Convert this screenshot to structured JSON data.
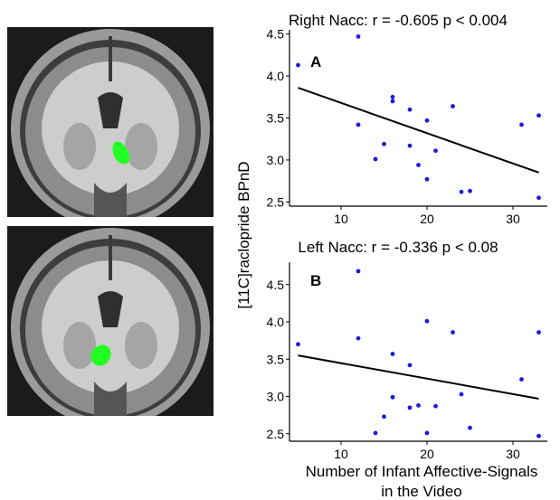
{
  "figure": {
    "ylabel": "[11C]raclopride  BPnD",
    "xlabel_line1": "Number of Infant Affective-Signals",
    "xlabel_line2": "in the Video",
    "colors": {
      "points": "#1a1adb",
      "fit": "#000000",
      "roi": "#22ff22",
      "brain_background": "#1b1b1b"
    },
    "brain_panels": [
      {
        "label": "Right Nacc ROI",
        "hemisphere": "right"
      },
      {
        "label": "Left Nacc ROI",
        "hemisphere": "left"
      }
    ]
  },
  "chart_data": [
    {
      "type": "scatter",
      "panel_label": "A",
      "title": "Right Nacc: r = -0.605 p < 0.004",
      "xlabel": "Number of Infant Affective-Signals in the Video",
      "ylabel": "[11C]raclopride  BPnD",
      "xlim": [
        4,
        34
      ],
      "ylim": [
        2.45,
        4.55
      ],
      "xticks": [
        10,
        20,
        30
      ],
      "yticks": [
        2.5,
        3.0,
        3.5,
        4.0,
        4.5
      ],
      "ytick_labels": [
        "2.5",
        "3.0",
        "3.5",
        "4.0",
        "4.5"
      ],
      "grid": false,
      "points": [
        {
          "x": 5,
          "y": 4.13
        },
        {
          "x": 12,
          "y": 4.47
        },
        {
          "x": 12,
          "y": 3.42
        },
        {
          "x": 14,
          "y": 3.01
        },
        {
          "x": 15,
          "y": 3.19
        },
        {
          "x": 16,
          "y": 3.75
        },
        {
          "x": 16,
          "y": 3.7
        },
        {
          "x": 18,
          "y": 3.6
        },
        {
          "x": 18,
          "y": 3.17
        },
        {
          "x": 19,
          "y": 2.94
        },
        {
          "x": 20,
          "y": 3.47
        },
        {
          "x": 20,
          "y": 2.77
        },
        {
          "x": 21,
          "y": 3.11
        },
        {
          "x": 23,
          "y": 3.64
        },
        {
          "x": 24,
          "y": 2.62
        },
        {
          "x": 25,
          "y": 2.63
        },
        {
          "x": 31,
          "y": 3.42
        },
        {
          "x": 33,
          "y": 3.53
        },
        {
          "x": 33,
          "y": 2.55
        }
      ],
      "fit_line": {
        "x": [
          5,
          33
        ],
        "y": [
          3.86,
          2.85
        ]
      }
    },
    {
      "type": "scatter",
      "panel_label": "B",
      "title": "Left Nacc: r = -0.336 p < 0.08",
      "xlabel": "Number of Infant Affective-Signals in the Video",
      "ylabel": "[11C]raclopride  BPnD",
      "xlim": [
        4,
        34
      ],
      "ylim": [
        2.4,
        4.8
      ],
      "xticks": [
        10,
        20,
        30
      ],
      "yticks": [
        2.5,
        3.0,
        3.5,
        4.0,
        4.5
      ],
      "ytick_labels": [
        "2.5",
        "3.0",
        "3.5",
        "4.0",
        "4.5"
      ],
      "grid": false,
      "points": [
        {
          "x": 5,
          "y": 3.7
        },
        {
          "x": 12,
          "y": 4.68
        },
        {
          "x": 12,
          "y": 3.78
        },
        {
          "x": 14,
          "y": 2.51
        },
        {
          "x": 15,
          "y": 2.73
        },
        {
          "x": 16,
          "y": 3.57
        },
        {
          "x": 16,
          "y": 2.99
        },
        {
          "x": 18,
          "y": 3.42
        },
        {
          "x": 18,
          "y": 2.85
        },
        {
          "x": 19,
          "y": 2.88
        },
        {
          "x": 20,
          "y": 4.01
        },
        {
          "x": 20,
          "y": 2.51
        },
        {
          "x": 21,
          "y": 2.87
        },
        {
          "x": 23,
          "y": 3.86
        },
        {
          "x": 24,
          "y": 3.03
        },
        {
          "x": 25,
          "y": 2.58
        },
        {
          "x": 31,
          "y": 3.23
        },
        {
          "x": 33,
          "y": 3.86
        },
        {
          "x": 33,
          "y": 2.47
        }
      ],
      "fit_line": {
        "x": [
          5,
          33
        ],
        "y": [
          3.55,
          2.97
        ]
      }
    }
  ]
}
